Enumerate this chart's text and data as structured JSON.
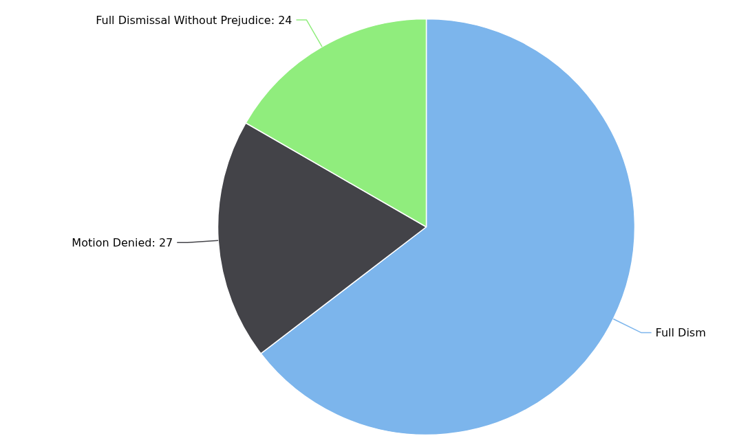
{
  "chart_data": {
    "type": "pie",
    "categories": [
      "Full Dism",
      "Motion Denied",
      "Full Dismissal Without Prejudice"
    ],
    "values": [
      93,
      27,
      24
    ],
    "value_labels": [
      null,
      "27",
      "24"
    ],
    "colors": [
      "#7cb5ec",
      "#434348",
      "#90ed7d"
    ]
  }
}
